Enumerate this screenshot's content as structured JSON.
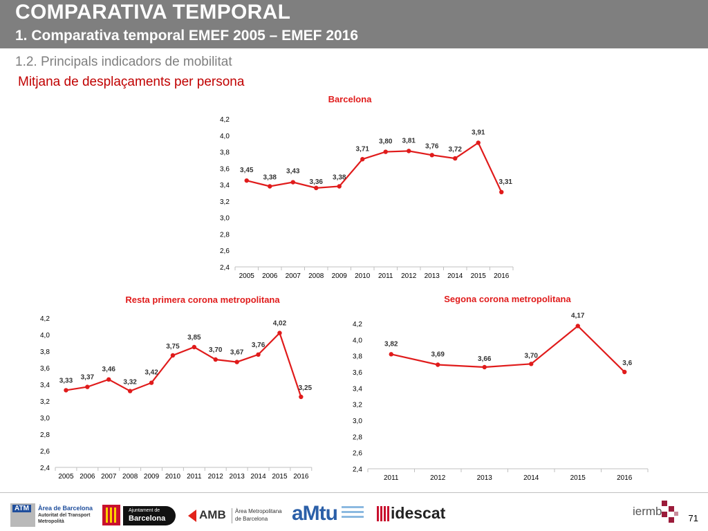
{
  "header": {
    "title": "COMPARATIVA TEMPORAL",
    "subtitle": "1. Comparativa temporal EMEF 2005 – EMEF 2016"
  },
  "section": "1.2. Principals indicadors de mobilitat",
  "metric": "Mitjana de desplaçaments per persona",
  "colors": {
    "header_bg": "#7f7f7f",
    "series": "#e01b1b",
    "metric_text": "#c00000"
  },
  "chart_data": [
    {
      "type": "line",
      "title": "Barcelona",
      "x": [
        "2005",
        "2006",
        "2007",
        "2008",
        "2009",
        "2010",
        "2011",
        "2012",
        "2013",
        "2014",
        "2015",
        "2016"
      ],
      "values": [
        3.45,
        3.38,
        3.43,
        3.36,
        3.38,
        3.71,
        3.8,
        3.81,
        3.76,
        3.72,
        3.91,
        3.31
      ],
      "labels": [
        "3,45",
        "3,38",
        "3,43",
        "3,36",
        "3,38",
        "3,71",
        "3,80",
        "3,81",
        "3,76",
        "3,72",
        "3,91",
        "3,31"
      ],
      "yticks": [
        "2,4",
        "2,6",
        "2,8",
        "3,0",
        "3,2",
        "3,4",
        "3,6",
        "3,8",
        "4,0",
        "4,2"
      ],
      "ylim": [
        2.4,
        4.2
      ],
      "xlabel": "",
      "ylabel": ""
    },
    {
      "type": "line",
      "title": "Resta primera corona metropolitana",
      "x": [
        "2005",
        "2006",
        "2007",
        "2008",
        "2009",
        "2010",
        "2011",
        "2012",
        "2013",
        "2014",
        "2015",
        "2016"
      ],
      "values": [
        3.33,
        3.37,
        3.46,
        3.32,
        3.42,
        3.75,
        3.85,
        3.7,
        3.67,
        3.76,
        4.02,
        3.25
      ],
      "labels": [
        "3,33",
        "3,37",
        "3,46",
        "3,32",
        "3,42",
        "3,75",
        "3,85",
        "3,70",
        "3,67",
        "3,76",
        "4,02",
        "3,25"
      ],
      "yticks": [
        "2,4",
        "2,6",
        "2,8",
        "3,0",
        "3,2",
        "3,4",
        "3,6",
        "3,8",
        "4,0",
        "4,2"
      ],
      "ylim": [
        2.4,
        4.2
      ],
      "xlabel": "",
      "ylabel": ""
    },
    {
      "type": "line",
      "title": "Segona corona metropolitana",
      "x": [
        "2011",
        "2012",
        "2013",
        "2014",
        "2015",
        "2016"
      ],
      "values": [
        3.82,
        3.69,
        3.66,
        3.7,
        4.17,
        3.6
      ],
      "labels": [
        "3,82",
        "3,69",
        "3,66",
        "3,70",
        "4,17",
        "3,6"
      ],
      "yticks": [
        "2,4",
        "2,6",
        "2,8",
        "3,0",
        "3,2",
        "3,4",
        "3,6",
        "3,8",
        "4,0",
        "4,2"
      ],
      "ylim": [
        2.4,
        4.2
      ],
      "xlabel": "",
      "ylabel": ""
    }
  ],
  "footer": {
    "atm_badge": "ATM",
    "atm_text": "Àrea de Barcelona",
    "atm_sub1": "Autoritat del Transport",
    "atm_sub2": "Metropolità",
    "ajuntament_top": "Ajuntament de",
    "ajuntament_main": "Barcelona",
    "amb": "AMB",
    "amb_text1": "Àrea Metropolitana",
    "amb_text2": "de Barcelona",
    "amtu": "aMtu",
    "idescat": "idescat",
    "iermb": "iermb",
    "page_number": "71"
  }
}
